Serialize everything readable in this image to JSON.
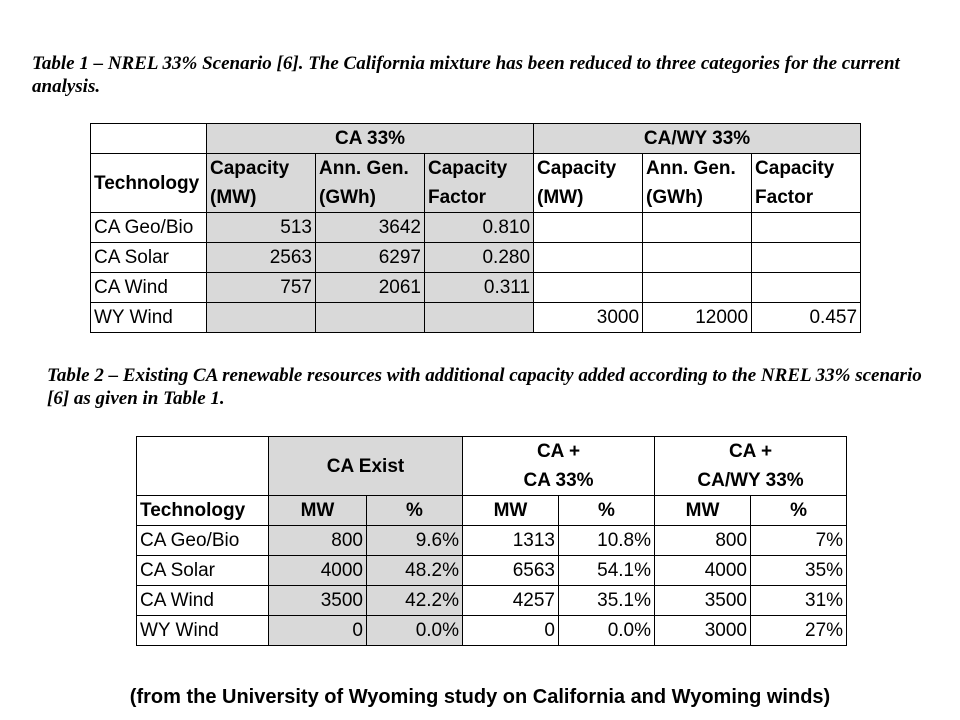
{
  "table1": {
    "caption": "Table 1 – NREL 33% Scenario [6]. The California mixture has been reduced to three categories for the current analysis.",
    "group_headers": [
      "CA 33%",
      "CA/WY 33%"
    ],
    "col_headers": {
      "technology": "Technology",
      "cap": [
        "Capacity",
        "(MW)"
      ],
      "gen": [
        "Ann. Gen.",
        "(GWh)"
      ],
      "cf": [
        "Capacity",
        "Factor"
      ]
    },
    "rows": [
      {
        "tech": "CA Geo/Bio",
        "ca_cap": "513",
        "ca_gen": "3642",
        "ca_cf": "0.810",
        "wy_cap": "",
        "wy_gen": "",
        "wy_cf": ""
      },
      {
        "tech": "CA Solar",
        "ca_cap": "2563",
        "ca_gen": "6297",
        "ca_cf": "0.280",
        "wy_cap": "",
        "wy_gen": "",
        "wy_cf": ""
      },
      {
        "tech": "CA Wind",
        "ca_cap": "757",
        "ca_gen": "2061",
        "ca_cf": "0.311",
        "wy_cap": "",
        "wy_gen": "",
        "wy_cf": ""
      },
      {
        "tech": "WY Wind",
        "ca_cap": "",
        "ca_gen": "",
        "ca_cf": "",
        "wy_cap": "3000",
        "wy_gen": "12000",
        "wy_cf": "0.457"
      }
    ]
  },
  "table2": {
    "caption": "Table 2 – Existing CA renewable resources with additional capacity added according to the NREL 33% scenario [6] as given in Table 1.",
    "group_headers": {
      "exist": "CA Exist",
      "ca33": [
        "CA +",
        "CA 33%"
      ],
      "cawy": [
        "CA +",
        "CA/WY 33%"
      ]
    },
    "col_headers": {
      "technology": "Technology",
      "mw": "MW",
      "pct": "%"
    },
    "rows": [
      {
        "tech": "CA Geo/Bio",
        "ex_mw": "800",
        "ex_pct": "9.6%",
        "ca_mw": "1313",
        "ca_pct": "10.8%",
        "wy_mw": "800",
        "wy_pct": "7%"
      },
      {
        "tech": "CA Solar",
        "ex_mw": "4000",
        "ex_pct": "48.2%",
        "ca_mw": "6563",
        "ca_pct": "54.1%",
        "wy_mw": "4000",
        "wy_pct": "35%"
      },
      {
        "tech": "CA Wind",
        "ex_mw": "3500",
        "ex_pct": "42.2%",
        "ca_mw": "4257",
        "ca_pct": "35.1%",
        "wy_mw": "3500",
        "wy_pct": "31%"
      },
      {
        "tech": "WY Wind",
        "ex_mw": "0",
        "ex_pct": "0.0%",
        "ca_mw": "0",
        "ca_pct": "0.0%",
        "wy_mw": "3000",
        "wy_pct": "27%"
      }
    ]
  },
  "footer": "(from the University of Wyoming study on California and Wyoming winds)"
}
